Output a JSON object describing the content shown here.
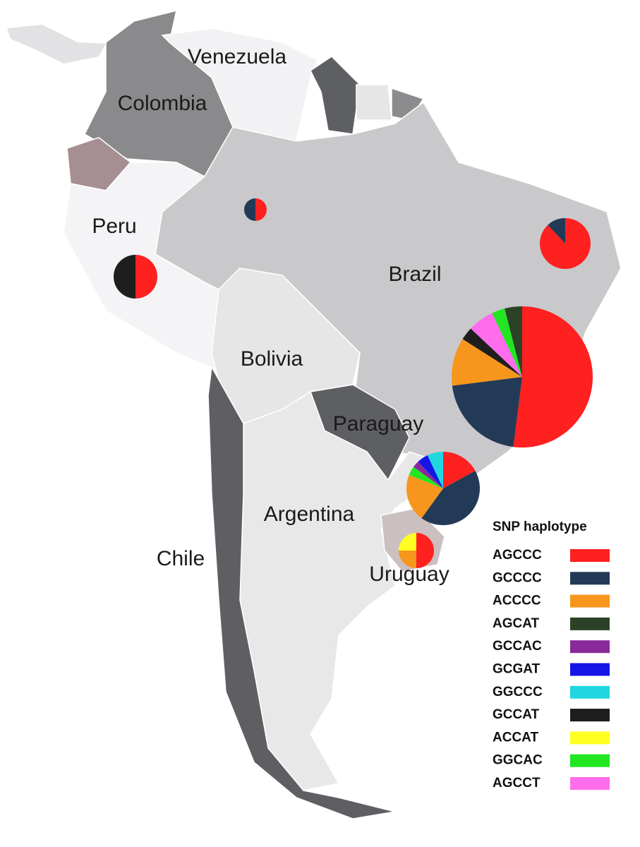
{
  "map": {
    "country_labels": [
      "Venezuela",
      "Colombia",
      "Peru",
      "Brazil",
      "Bolivia",
      "Paraguay",
      "Argentina",
      "Chile",
      "Uruguay"
    ]
  },
  "legend": {
    "title": "SNP haplotype",
    "items": [
      {
        "name": "AGCCC",
        "color": "#ff2020"
      },
      {
        "name": "GCCCC",
        "color": "#233a57"
      },
      {
        "name": "ACCCC",
        "color": "#f7961c"
      },
      {
        "name": "AGCAT",
        "color": "#2b4226"
      },
      {
        "name": "GCCAC",
        "color": "#8a2a9a"
      },
      {
        "name": "GCGAT",
        "color": "#1515e8"
      },
      {
        "name": "GGCCC",
        "color": "#22d6e0"
      },
      {
        "name": "GCCAT",
        "color": "#1e1e1e"
      },
      {
        "name": "ACCAT",
        "color": "#ffff22"
      },
      {
        "name": "GGCAC",
        "color": "#22e622"
      },
      {
        "name": "AGCCT",
        "color": "#ff6cec"
      }
    ]
  },
  "pies": [
    {
      "slices": [
        {
          "color": "#ff2020",
          "value": 50
        },
        {
          "color": "#233a57",
          "value": 50
        }
      ]
    },
    {
      "slices": [
        {
          "color": "#ff2020",
          "value": 50
        },
        {
          "color": "#1e1e1e",
          "value": 50
        }
      ]
    },
    {
      "slices": [
        {
          "color": "#ff2020",
          "value": 88
        },
        {
          "color": "#233a57",
          "value": 12
        }
      ]
    },
    {
      "slices": [
        {
          "color": "#ff2020",
          "value": 52
        },
        {
          "color": "#233a57",
          "value": 21
        },
        {
          "color": "#f7961c",
          "value": 11
        },
        {
          "color": "#1e1e1e",
          "value": 3
        },
        {
          "color": "#ff6cec",
          "value": 6
        },
        {
          "color": "#22e622",
          "value": 3
        },
        {
          "color": "#2b4226",
          "value": 4
        }
      ]
    },
    {
      "slices": [
        {
          "color": "#ff2020",
          "value": 17
        },
        {
          "color": "#233a57",
          "value": 43
        },
        {
          "color": "#f7961c",
          "value": 21
        },
        {
          "color": "#22e622",
          "value": 4
        },
        {
          "color": "#8a2a9a",
          "value": 3
        },
        {
          "color": "#1515e8",
          "value": 5
        },
        {
          "color": "#22d6e0",
          "value": 7
        }
      ]
    },
    {
      "slices": [
        {
          "color": "#ff2020",
          "value": 50
        },
        {
          "color": "#f7961c",
          "value": 25
        },
        {
          "color": "#ffff22",
          "value": 25
        }
      ]
    }
  ]
}
